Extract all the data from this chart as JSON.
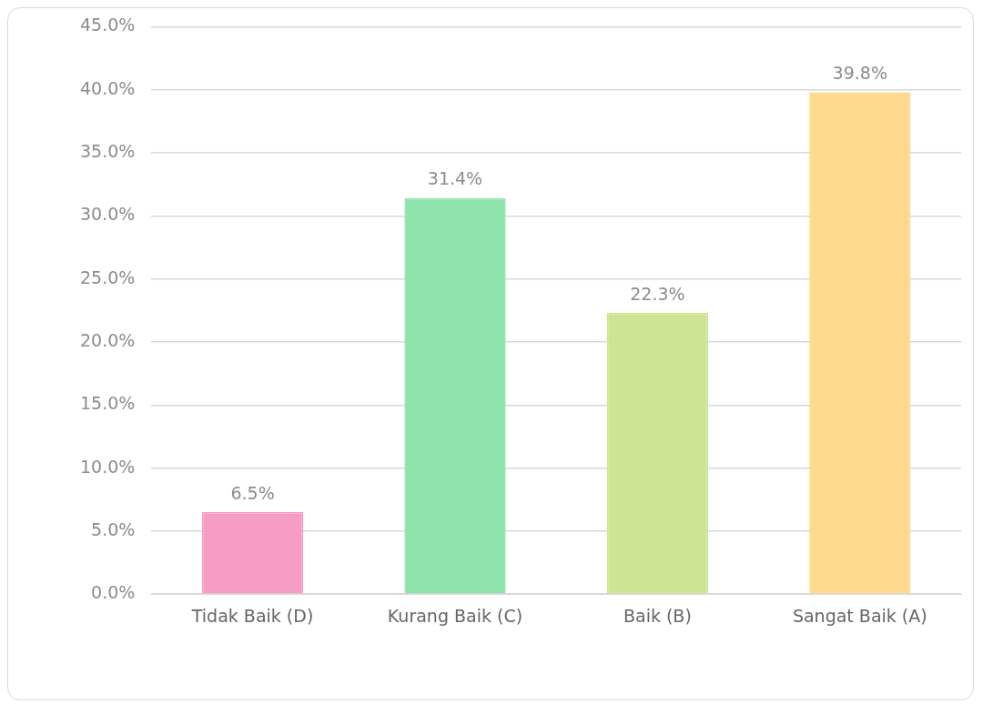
{
  "chart_data": {
    "type": "bar",
    "categories": [
      "Tidak Baik (D)",
      "Kurang Baik (C)",
      "Baik (B)",
      "Sangat Baik (A)"
    ],
    "values": [
      6.5,
      31.4,
      22.3,
      39.8
    ],
    "colors": [
      "#f79cc4",
      "#8fe4ae",
      "#cde494",
      "#ffd98e"
    ],
    "value_labels": [
      "6.5%",
      "31.4%",
      "22.3%",
      "39.8%"
    ],
    "ylim": [
      0,
      45
    ],
    "yticks": [
      {
        "value": 0,
        "label": "0.0%"
      },
      {
        "value": 5,
        "label": "5.0%"
      },
      {
        "value": 10,
        "label": "10.0%"
      },
      {
        "value": 15,
        "label": "15.0%"
      },
      {
        "value": 20,
        "label": "20.0%"
      },
      {
        "value": 25,
        "label": "25.0%"
      },
      {
        "value": 30,
        "label": "30.0%"
      },
      {
        "value": 35,
        "label": "35.0%"
      },
      {
        "value": 40,
        "label": "40.0%"
      },
      {
        "value": 45,
        "label": "45.0%"
      }
    ],
    "grid": "y",
    "legend": false
  }
}
